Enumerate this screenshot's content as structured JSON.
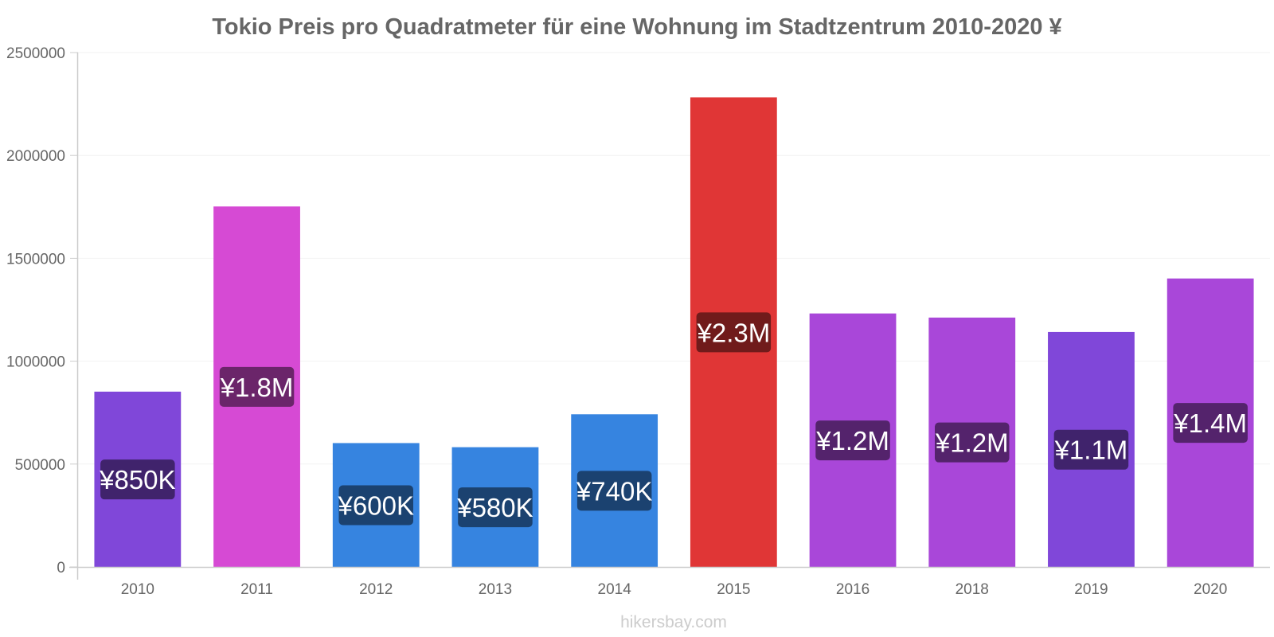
{
  "chart_data": {
    "type": "bar",
    "title": "Tokio Preis pro Quadratmeter für eine Wohnung im Stadtzentrum 2010-2020 ¥",
    "xlabel": "",
    "ylabel": "",
    "ylim": [
      0,
      2500000
    ],
    "yticks": [
      "0",
      "500000",
      "1000000",
      "1500000",
      "2000000",
      "2500000"
    ],
    "ytick_values": [
      0,
      500000,
      1000000,
      1500000,
      2000000,
      2500000
    ],
    "categories": [
      "2010",
      "2011",
      "2012",
      "2013",
      "2014",
      "2015",
      "2016",
      "2018",
      "2019",
      "2020"
    ],
    "values": [
      850000,
      1750000,
      600000,
      580000,
      740000,
      2280000,
      1230000,
      1210000,
      1140000,
      1400000
    ],
    "data_labels": [
      "¥850K",
      "¥1.8M",
      "¥600K",
      "¥580K",
      "¥740K",
      "¥2.3M",
      "¥1.2M",
      "¥1.2M",
      "¥1.1M",
      "¥1.4M"
    ],
    "bar_colors": [
      "#8047d9",
      "#d64ad4",
      "#3684e0",
      "#3684e0",
      "#3684e0",
      "#e03636",
      "#a947d9",
      "#a947d9",
      "#8047d9",
      "#a947d9"
    ],
    "label_bg_colors": [
      "#40236c",
      "#6b256a",
      "#1b4270",
      "#1b4270",
      "#1b4270",
      "#701b1b",
      "#54236c",
      "#54236c",
      "#40236c",
      "#54236c"
    ],
    "grid": true,
    "legend": "none"
  },
  "watermark": "hikersbay.com"
}
